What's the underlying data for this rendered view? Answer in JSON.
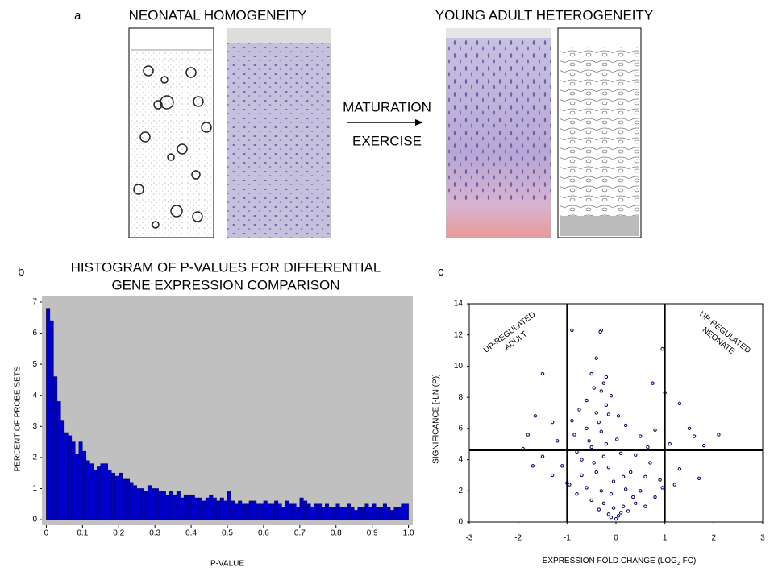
{
  "panel_a": {
    "label": "a",
    "left_title": "NEONATAL HOMOGENEITY",
    "right_title": "YOUNG ADULT HETEROGENEITY",
    "arrow_top": "MATURATION",
    "arrow_bottom": "EXERCISE"
  },
  "chart_data": [
    {
      "type": "histogram",
      "panel_label": "b",
      "title": [
        "HISTOGRAM OF P-VALUES FOR DIFFERENTIAL",
        "GENE EXPRESSION COMPARISON"
      ],
      "x_label": "P-VALUE",
      "y_label": "PERCENT OF PROBE SETS",
      "color": "#0000cc",
      "background": "#c0c0c0",
      "bins": [
        0,
        0.01,
        0.02,
        0.03,
        0.04,
        0.05,
        0.06,
        0.07,
        0.08,
        0.09,
        0.1,
        0.11,
        0.12,
        0.13,
        0.14,
        0.15,
        0.16,
        0.17,
        0.18,
        0.19,
        0.2,
        0.21,
        0.22,
        0.23,
        0.24,
        0.25,
        0.26,
        0.27,
        0.28,
        0.29,
        0.3,
        0.31,
        0.32,
        0.33,
        0.34,
        0.35,
        0.36,
        0.37,
        0.38,
        0.39,
        0.4,
        0.41,
        0.42,
        0.43,
        0.44,
        0.45,
        0.46,
        0.47,
        0.48,
        0.49,
        0.5,
        0.51,
        0.52,
        0.53,
        0.54,
        0.55,
        0.56,
        0.57,
        0.58,
        0.59,
        0.6,
        0.61,
        0.62,
        0.63,
        0.64,
        0.65,
        0.66,
        0.67,
        0.68,
        0.69,
        0.7,
        0.71,
        0.72,
        0.73,
        0.74,
        0.75,
        0.76,
        0.77,
        0.78,
        0.79,
        0.8,
        0.81,
        0.82,
        0.83,
        0.84,
        0.85,
        0.86,
        0.87,
        0.88,
        0.89,
        0.9,
        0.91,
        0.92,
        0.93,
        0.94,
        0.95,
        0.96,
        0.97,
        0.98,
        0.99,
        1
      ],
      "counts": [
        6.8,
        6.4,
        4.6,
        3.8,
        3.2,
        2.8,
        2.7,
        2.5,
        2.1,
        2.5,
        2.2,
        1.9,
        1.8,
        1.6,
        1.7,
        1.8,
        1.8,
        1.6,
        1.5,
        1.4,
        1.5,
        1.3,
        1.3,
        1.2,
        1.1,
        1.0,
        1.0,
        0.9,
        1.1,
        1.0,
        1.0,
        0.9,
        0.9,
        0.8,
        0.9,
        0.8,
        0.9,
        0.7,
        0.8,
        0.8,
        0.8,
        0.7,
        0.7,
        0.6,
        0.7,
        0.8,
        0.7,
        0.6,
        0.7,
        0.6,
        0.9,
        0.6,
        0.5,
        0.6,
        0.5,
        0.5,
        0.6,
        0.6,
        0.5,
        0.5,
        0.6,
        0.5,
        0.5,
        0.6,
        0.5,
        0.4,
        0.6,
        0.5,
        0.5,
        0.4,
        0.7,
        0.6,
        0.5,
        0.4,
        0.5,
        0.5,
        0.4,
        0.5,
        0.4,
        0.4,
        0.5,
        0.4,
        0.4,
        0.5,
        0.4,
        0.3,
        0.4,
        0.4,
        0.5,
        0.4,
        0.5,
        0.4,
        0.4,
        0.5,
        0.4,
        0.3,
        0.4,
        0.4,
        0.5,
        0.5
      ],
      "xlim": [
        -0.012,
        1.012
      ],
      "ylim": [
        -0.18,
        7.18
      ],
      "xticks": [
        0,
        0.1,
        0.2,
        0.3,
        0.4,
        0.5,
        0.6,
        0.7,
        0.8,
        0.9,
        {
          "value": 1,
          "label": "1.0"
        }
      ],
      "yticks": [
        0,
        1,
        2,
        3,
        4,
        5,
        6,
        7
      ]
    },
    {
      "type": "scatter",
      "panel_label": "c",
      "x_label": [
        "EXPRESSION FOLD CHANGE (LOG",
        "2",
        " FC)"
      ],
      "y_label": "SIGNIFICANCE [-LN (P)]",
      "color": "#000080",
      "annotations": [
        {
          "lines": [
            "UP-REGULATED",
            "ADULT"
          ],
          "color": "#1f1f8f"
        },
        {
          "lines": [
            "UP-REGULATED",
            "NEONATE"
          ],
          "color": "#e07a1f"
        }
      ],
      "vlines": [
        -1,
        1
      ],
      "hline": 4.6,
      "x": [
        -0.3,
        -0.32,
        -0.9,
        -0.5,
        -0.2,
        -1.5,
        -0.45,
        -0.3,
        -0.1,
        0.75,
        1.0,
        1.3,
        0.95,
        -0.6,
        -0.2,
        -0.75,
        -0.4,
        0.05,
        -0.9,
        -1.3,
        -1.65,
        -1.8,
        1.5,
        2.1,
        1.6,
        1.8,
        -1.2,
        -0.6,
        -0.3,
        0.2,
        0.5,
        0.8,
        1.1,
        -1.5,
        -1.1,
        -0.8,
        -0.5,
        -0.2,
        0.1,
        0.4,
        0.7,
        1.3,
        1.7,
        0.9,
        -1.7,
        -0.95,
        -0.7,
        -0.4,
        -0.15,
        0.3,
        0.6,
        -0.6,
        -0.3,
        -0.1,
        0.2,
        0.5,
        0.8,
        -0.5,
        -0.25,
        -0.05,
        0.15,
        0.4,
        -0.35,
        -0.15,
        0,
        0.05,
        0.1,
        -0.1,
        0.25,
        0.6,
        -0.8,
        -1.0,
        0.95,
        -0.45,
        -0.25,
        -0.05,
        0.15,
        0.35,
        -0.7,
        -0.55,
        -0.35,
        -0.15,
        0.02,
        -0.85,
        1.2,
        -1.3,
        0.65,
        -1.9,
        -0.4,
        -0.25
      ],
      "y": [
        12.3,
        12.2,
        12.3,
        9.5,
        9.3,
        9.5,
        8.6,
        8.4,
        8.1,
        8.9,
        8.3,
        7.6,
        11.1,
        7.8,
        7.5,
        7.2,
        7.0,
        6.8,
        6.5,
        6.4,
        6.8,
        5.6,
        6.0,
        5.6,
        5.5,
        4.9,
        5.2,
        6.0,
        5.8,
        6.2,
        5.5,
        5.9,
        5.0,
        4.2,
        3.6,
        4.5,
        4.8,
        5.0,
        4.4,
        4.3,
        3.8,
        3.4,
        2.8,
        2.7,
        3.6,
        2.4,
        3.0,
        3.2,
        3.5,
        3.2,
        2.9,
        2.2,
        2.0,
        1.8,
        2.1,
        2.0,
        1.6,
        1.4,
        1.2,
        0.9,
        1.0,
        1.2,
        0.8,
        0.5,
        0.2,
        0.4,
        0.6,
        0.3,
        0.7,
        1.0,
        1.8,
        2.5,
        2.2,
        3.8,
        4.2,
        2.6,
        2.9,
        1.6,
        4.0,
        5.2,
        6.4,
        6.9,
        5.3,
        5.6,
        2.4,
        3.0,
        4.8,
        4.7,
        10.5,
        8.9
      ],
      "xlim": [
        -3,
        3
      ],
      "ylim": [
        0,
        14
      ],
      "xticks": [
        -3,
        -2,
        -1,
        0,
        1,
        2,
        3
      ],
      "yticks": [
        0,
        2,
        4,
        6,
        8,
        10,
        12,
        14
      ]
    }
  ]
}
